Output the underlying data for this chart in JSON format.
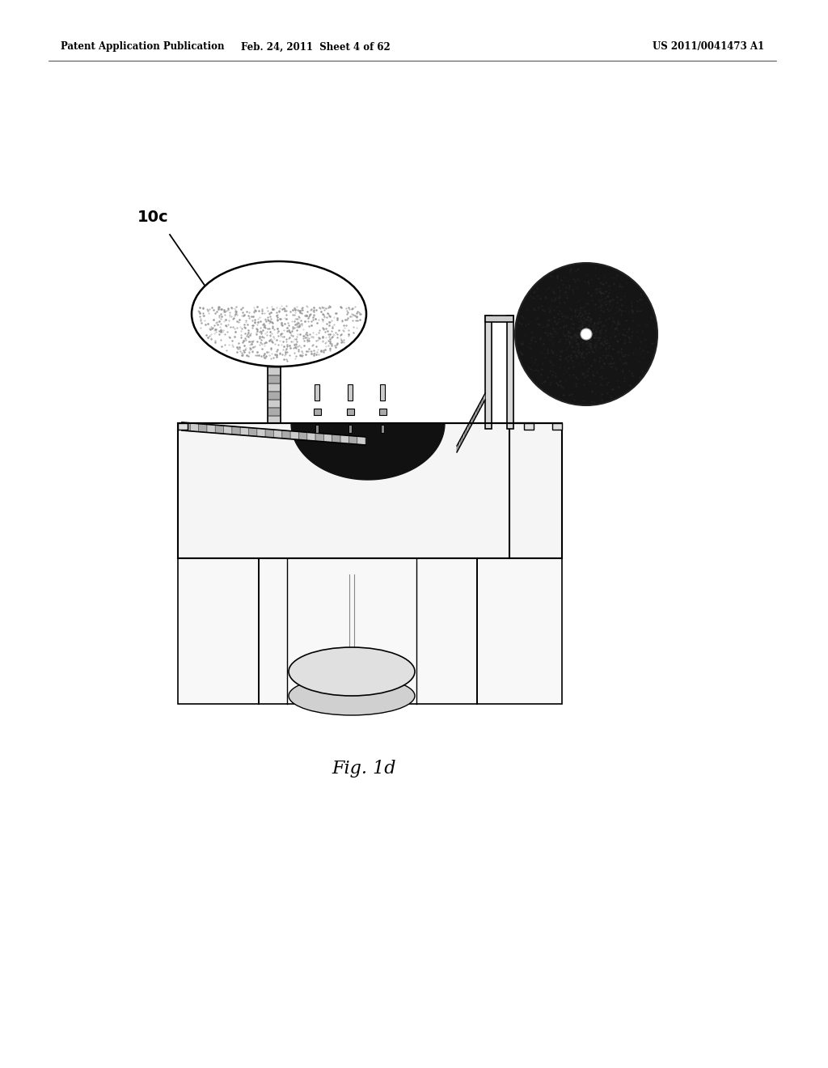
{
  "background_color": "#ffffff",
  "header_left": "Patent Application Publication",
  "header_mid": "Feb. 24, 2011  Sheet 4 of 62",
  "header_right": "US 2011/0041473 A1",
  "label_10c": "10c",
  "caption": "Fig. 1d",
  "fig_width": 10.24,
  "fig_height": 13.2,
  "dpi": 100
}
